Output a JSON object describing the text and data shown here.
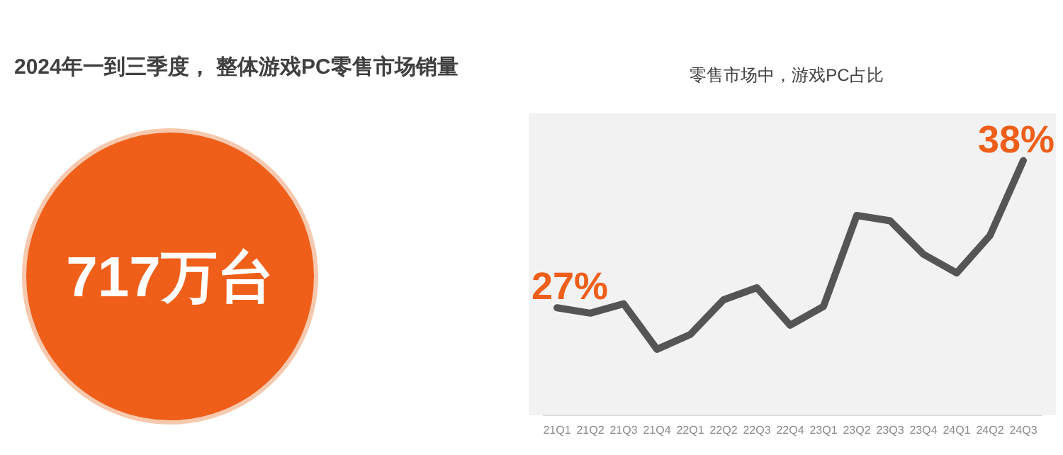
{
  "chart_data": [
    {
      "type": "other",
      "title": "2024年一到三季度， 整体游戏PC零售市场销量",
      "annotations": [
        "717万台"
      ],
      "color": "#ef5f1a"
    },
    {
      "type": "line",
      "title": "零售市场中，游戏PC占比",
      "categories": [
        "21Q1",
        "21Q2",
        "21Q3",
        "21Q4",
        "22Q1",
        "22Q2",
        "22Q3",
        "22Q4",
        "23Q1",
        "23Q2",
        "23Q3",
        "23Q4",
        "24Q1",
        "24Q2",
        "24Q3"
      ],
      "series": [
        {
          "color": "#555555",
          "values": [
            27,
            26.6,
            27.3,
            23.9,
            25.0,
            27.6,
            28.5,
            25.7,
            27.1,
            33.9,
            33.5,
            31.0,
            29.6,
            32.4,
            38
          ],
          "value_labels": [
            "27%",
            null,
            null,
            null,
            null,
            null,
            null,
            null,
            null,
            null,
            null,
            null,
            null,
            null,
            "38%"
          ]
        }
      ],
      "marker": "none",
      "line_style": "solid"
    }
  ]
}
